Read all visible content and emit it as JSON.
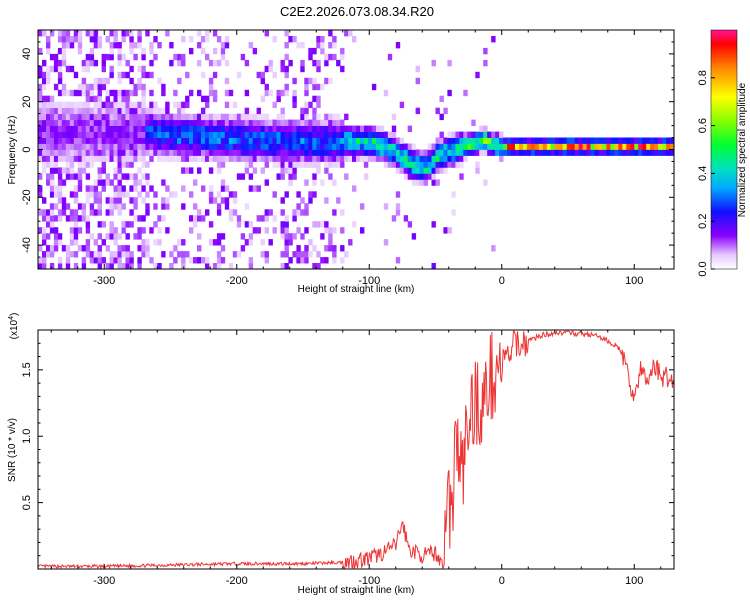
{
  "title": "C2E2.2026.073.08.34.R20",
  "chart_data": [
    {
      "type": "heatmap",
      "xlabel": "Height of straight line (km)",
      "ylabel": "Frequency (Hz)",
      "xlim": [
        -350,
        130
      ],
      "ylim": [
        -50,
        50
      ],
      "xticks": [
        -300,
        -200,
        -100,
        0,
        100
      ],
      "yticks": [
        -40,
        -20,
        0,
        20,
        40
      ],
      "ridge": {
        "x": [
          -275,
          -250,
          -200,
          -150,
          -120,
          -100,
          -90,
          -80,
          -70,
          -60,
          -55,
          -50,
          -40,
          -30,
          -20,
          -15,
          -10,
          0,
          10,
          50,
          100,
          130
        ],
        "y": [
          6,
          5,
          3,
          2,
          2,
          2,
          0,
          -3,
          -7,
          -9,
          -7,
          -4,
          -2,
          0,
          2,
          3,
          1,
          0,
          0,
          0,
          0,
          0
        ]
      },
      "colorbar": {
        "label": "Normalized spectral amplitude",
        "range": [
          0,
          1
        ],
        "ticks": [
          0.0,
          0.2,
          0.4,
          0.6,
          0.8
        ],
        "colormap": "rainbow"
      }
    },
    {
      "type": "line",
      "xlabel": "Height of straight line (km)",
      "ylabel": "SNR (10 * v/v)",
      "scale_label": "(x10",
      "scale_exponent": "4",
      "xlim": [
        -350,
        130
      ],
      "ylim": [
        0,
        1.8
      ],
      "xticks": [
        -300,
        -200,
        -100,
        0,
        100
      ],
      "yticks": [
        0.5,
        1.0,
        1.5
      ],
      "ytick_labels": [
        "0.5",
        "1.0",
        "1.5"
      ],
      "series": [
        {
          "color": "#ee3333",
          "x": [
            -350,
            -300,
            -250,
            -200,
            -150,
            -120,
            -100,
            -90,
            -80,
            -75,
            -70,
            -60,
            -50,
            -45,
            -40,
            -38,
            -35,
            -30,
            -25,
            -20,
            -15,
            -10,
            -5,
            0,
            5,
            10,
            20,
            30,
            40,
            50,
            60,
            70,
            80,
            90,
            95,
            100,
            105,
            110,
            115,
            120,
            125,
            130
          ],
          "y": [
            0.02,
            0.02,
            0.03,
            0.04,
            0.04,
            0.05,
            0.08,
            0.12,
            0.18,
            0.35,
            0.15,
            0.1,
            0.12,
            0.05,
            0.6,
            0.3,
            1.0,
            0.7,
            1.1,
            1.3,
            1.2,
            1.4,
            1.5,
            1.55,
            1.6,
            1.7,
            1.72,
            1.76,
            1.78,
            1.78,
            1.77,
            1.76,
            1.72,
            1.65,
            1.45,
            1.3,
            1.5,
            1.4,
            1.55,
            1.45,
            1.45,
            1.4
          ]
        }
      ]
    }
  ]
}
